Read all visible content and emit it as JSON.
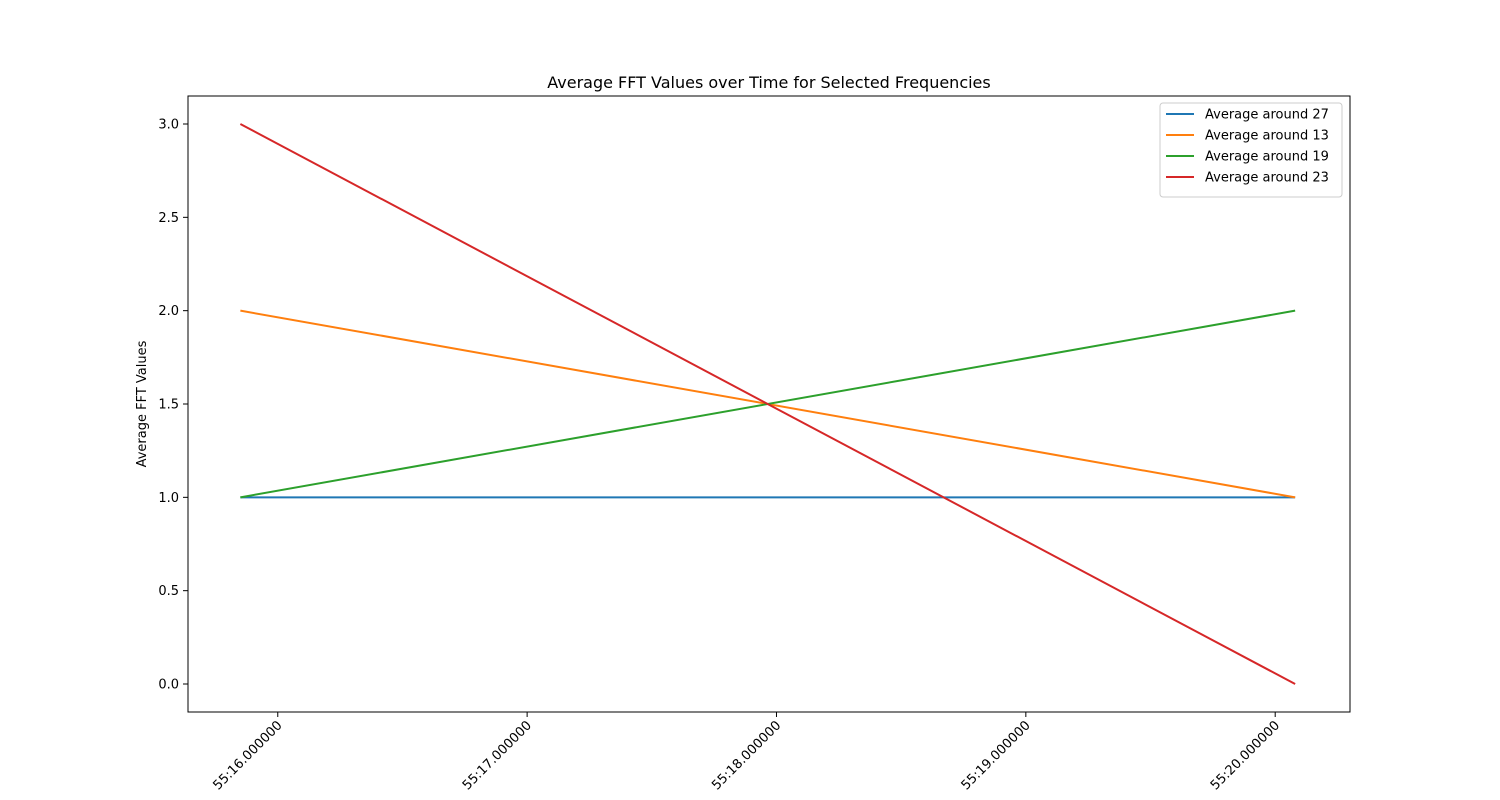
{
  "chart_data": {
    "type": "line",
    "title": "Average FFT Values over Time for Selected Frequencies",
    "xlabel": "",
    "ylabel": "Average FFT Values",
    "x": [
      "55:15.850000",
      "55:20.080000"
    ],
    "xticks": [
      "55:16.000000",
      "55:17.000000",
      "55:18.000000",
      "55:19.000000",
      "55:20.000000"
    ],
    "yticks": [
      "0.0",
      "0.5",
      "1.0",
      "1.5",
      "2.0",
      "2.5",
      "3.0"
    ],
    "xlim": [
      "55:15.640000",
      "55:20.300000"
    ],
    "ylim": [
      -0.15,
      3.15
    ],
    "grid": false,
    "legend_position": "upper right",
    "series": [
      {
        "name": "Average around 27",
        "color": "#1f77b4",
        "values": [
          1.0,
          1.0
        ]
      },
      {
        "name": "Average around 13",
        "color": "#ff7f0e",
        "values": [
          2.0,
          1.0
        ]
      },
      {
        "name": "Average around 19",
        "color": "#2ca02c",
        "values": [
          1.0,
          2.0
        ]
      },
      {
        "name": "Average around 23",
        "color": "#d62728",
        "values": [
          3.0,
          0.0
        ]
      }
    ]
  }
}
